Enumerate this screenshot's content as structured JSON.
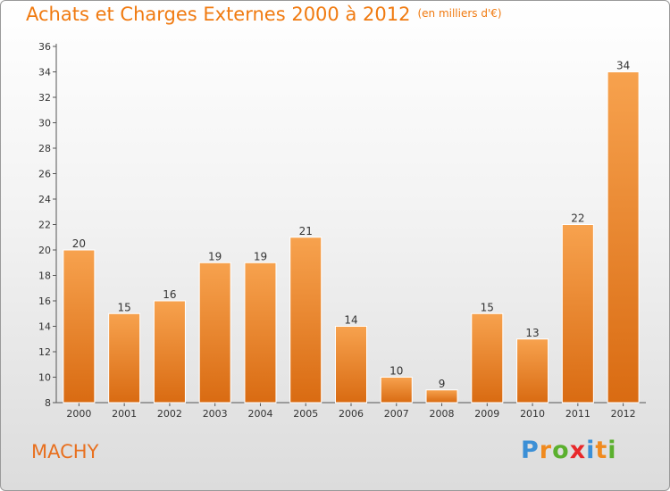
{
  "chart_data": {
    "type": "bar",
    "title": "Achats et Charges Externes 2000 à 2012",
    "subtitle": "(en milliers d'€)",
    "categories": [
      "2000",
      "2001",
      "2002",
      "2003",
      "2004",
      "2005",
      "2006",
      "2007",
      "2008",
      "2009",
      "2010",
      "2011",
      "2012"
    ],
    "values": [
      20,
      15,
      16,
      19,
      19,
      21,
      14,
      10,
      9,
      15,
      13,
      22,
      34
    ],
    "ylim": [
      8,
      36
    ],
    "yticks": [
      8,
      10,
      12,
      14,
      16,
      18,
      20,
      22,
      24,
      26,
      28,
      30,
      32,
      34,
      36
    ],
    "grid": false,
    "bar_color": "#f0882a"
  },
  "place": "MACHY",
  "logo": {
    "letters": [
      "P",
      "r",
      "o",
      "x",
      "i",
      "t",
      "i"
    ],
    "colors": [
      "#3b8fd6",
      "#f08a1e",
      "#5bb02e",
      "#e8282a",
      "#3b8fd6",
      "#f08a1e",
      "#5bb02e"
    ]
  }
}
